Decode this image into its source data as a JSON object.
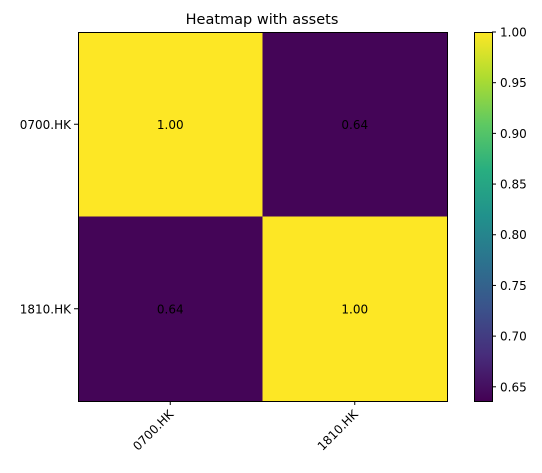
{
  "chart_data": {
    "type": "heatmap",
    "title": "Heatmap with assets",
    "row_labels": [
      "0700.HK",
      "1810.HK"
    ],
    "col_labels": [
      "0700.HK",
      "1810.HK"
    ],
    "values": [
      [
        1.0,
        0.64
      ],
      [
        0.64,
        1.0
      ]
    ],
    "cell_labels": [
      [
        "1.00",
        "0.64"
      ],
      [
        "0.64",
        "1.00"
      ]
    ],
    "colormap": "viridis",
    "colorbar": {
      "range": [
        0.636,
        1.0
      ],
      "ticks": [
        0.65,
        0.7,
        0.75,
        0.8,
        0.85,
        0.9,
        0.95,
        1.0
      ],
      "tick_labels": [
        "0.65",
        "0.70",
        "0.75",
        "0.80",
        "0.85",
        "0.90",
        "0.95",
        "1.00"
      ]
    },
    "colors": {
      "low": "#440154",
      "high": "#fde725"
    }
  }
}
